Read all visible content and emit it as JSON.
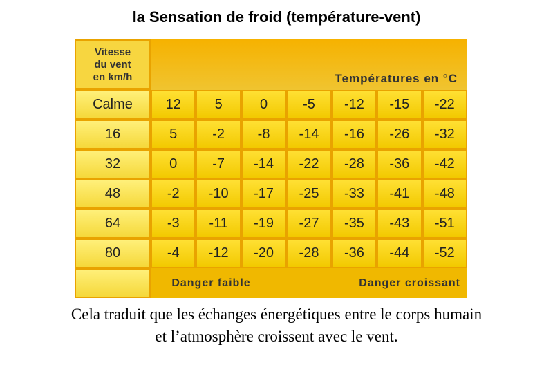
{
  "title": "la Sensation de froid (température-vent)",
  "table": {
    "corner": [
      "Vitesse",
      "du vent",
      "en km/h"
    ],
    "header": "Températures en °C",
    "rows": [
      [
        "Calme",
        "12",
        "5",
        "0",
        "-5",
        "-12",
        "-15",
        "-22"
      ],
      [
        "16",
        "5",
        "-2",
        "-8",
        "-14",
        "-16",
        "-26",
        "-32"
      ],
      [
        "32",
        "0",
        "-7",
        "-14",
        "-22",
        "-28",
        "-36",
        "-42"
      ],
      [
        "48",
        "-2",
        "-10",
        "-17",
        "-25",
        "-33",
        "-41",
        "-48"
      ],
      [
        "64",
        "-3",
        "-11",
        "-19",
        "-27",
        "-35",
        "-43",
        "-51"
      ],
      [
        "80",
        "-4",
        "-12",
        "-20",
        "-28",
        "-36",
        "-44",
        "-52"
      ]
    ],
    "footer": [
      "Danger faible",
      "Danger croissant"
    ]
  },
  "caption": [
    "Cela traduit que les échanges énergétiques entre le corps humain",
    "et l’atmosphère croissent avec le vent."
  ]
}
